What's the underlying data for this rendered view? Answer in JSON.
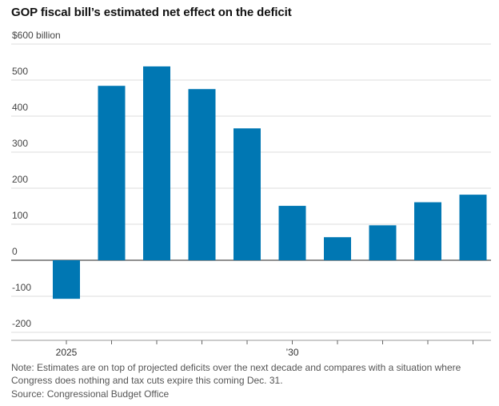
{
  "chart_data": {
    "type": "bar",
    "title": "GOP fiscal bill’s estimated net effect on the deficit",
    "ylabel": "",
    "xlabel": "",
    "ylim": [
      -200,
      600
    ],
    "yticks": [
      {
        "value": 600,
        "label": "$600 billion"
      },
      {
        "value": 500,
        "label": "500"
      },
      {
        "value": 400,
        "label": "400"
      },
      {
        "value": 300,
        "label": "300"
      },
      {
        "value": 200,
        "label": "200"
      },
      {
        "value": 100,
        "label": "100"
      },
      {
        "value": 0,
        "label": "0"
      },
      {
        "value": -100,
        "label": "-100"
      },
      {
        "value": -200,
        "label": "-200"
      }
    ],
    "categories": [
      "2025",
      "2026",
      "2027",
      "2028",
      "2029",
      "2030",
      "2031",
      "2032",
      "2033",
      "2034"
    ],
    "xtick_labels": [
      {
        "category": "2025",
        "label": "2025"
      },
      {
        "category": "2030",
        "label": "’30"
      }
    ],
    "values": [
      -107,
      484,
      538,
      475,
      366,
      151,
      64,
      97,
      161,
      182
    ],
    "bar_color": "#0077b3",
    "grid": true,
    "note": "Note: Estimates are on top of projected deficits over the next decade and compares with a situation where Congress does nothing and tax cuts expire this coming Dec. 31.",
    "source": "Source: Congressional Budget Office"
  }
}
